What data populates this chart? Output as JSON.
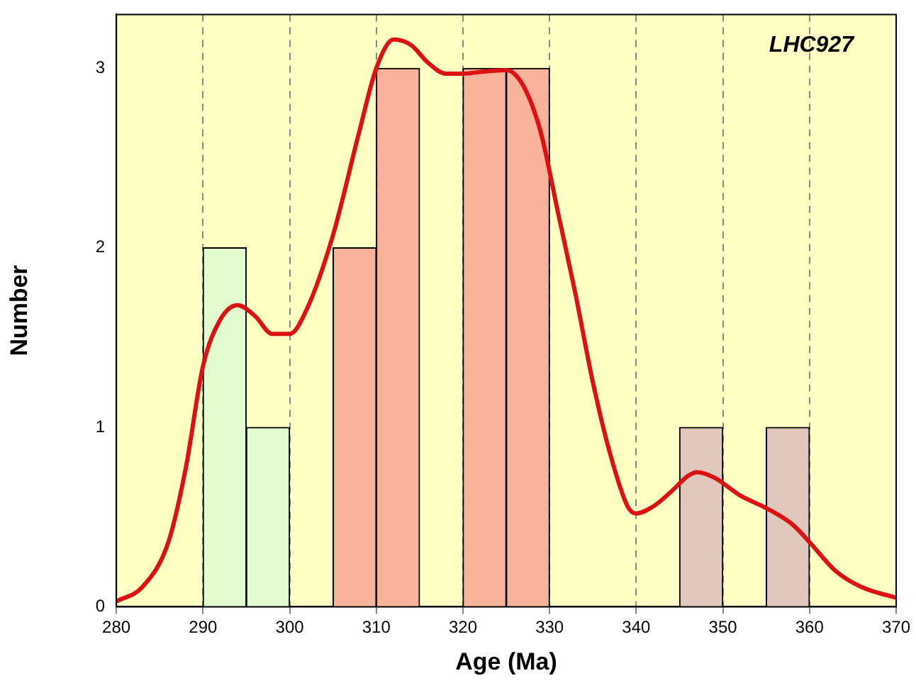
{
  "chart_data": {
    "type": "histogram",
    "title": "LHC927",
    "xlabel": "Age (Ma)",
    "ylabel": "Number",
    "xlim": [
      280,
      370
    ],
    "xticks": [
      280,
      290,
      300,
      310,
      320,
      330,
      340,
      350,
      360,
      370
    ],
    "ylim": [
      0,
      3.3
    ],
    "yticks": [
      0,
      1,
      2,
      3
    ],
    "grid": "x",
    "series": [
      {
        "bins": [
          290,
          295,
          300,
          305,
          310,
          315,
          320,
          325,
          330,
          335,
          340,
          345,
          350,
          355,
          360
        ],
        "values": [
          2,
          1,
          0,
          2,
          3,
          0,
          3,
          3,
          0,
          0,
          0,
          1,
          0,
          1
        ],
        "colors": [
          "#e2fbcf",
          "#e2fbcf",
          "#e2fbcf",
          "#f8b39a",
          "#f8b39a",
          "#f8b39a",
          "#f8b39a",
          "#f8b39a",
          "#f8b39a",
          "#e0c8bc",
          "#e0c8bc",
          "#e0c8bc",
          "#e0c8bc",
          "#e0c8bc"
        ]
      },
      {
        "type": "line",
        "color": "#dd1111",
        "x": [
          280,
          283,
          286,
          288,
          290,
          292,
          294,
          296,
          298,
          300,
          302,
          305,
          308,
          310,
          312,
          314,
          316,
          318,
          320,
          322,
          325,
          327,
          329,
          331,
          333,
          335,
          337,
          339,
          340,
          342,
          344,
          346,
          347,
          349,
          352,
          355,
          358,
          360,
          363,
          366,
          370
        ],
        "values": [
          0.03,
          0.11,
          0.36,
          0.77,
          1.34,
          1.6,
          1.68,
          1.62,
          1.52,
          1.52,
          1.66,
          2.07,
          2.64,
          3.0,
          3.16,
          3.13,
          3.03,
          2.97,
          2.97,
          2.98,
          2.99,
          2.9,
          2.64,
          2.19,
          1.74,
          1.25,
          0.85,
          0.56,
          0.52,
          0.56,
          0.64,
          0.73,
          0.75,
          0.72,
          0.62,
          0.55,
          0.46,
          0.36,
          0.2,
          0.11,
          0.05
        ]
      }
    ]
  }
}
